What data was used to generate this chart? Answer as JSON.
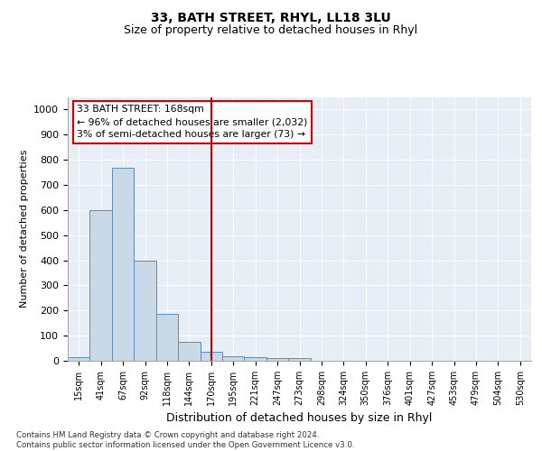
{
  "title1": "33, BATH STREET, RHYL, LL18 3LU",
  "title2": "Size of property relative to detached houses in Rhyl",
  "xlabel": "Distribution of detached houses by size in Rhyl",
  "ylabel": "Number of detached properties",
  "footer": "Contains HM Land Registry data © Crown copyright and database right 2024.\nContains public sector information licensed under the Open Government Licence v3.0.",
  "bin_labels": [
    "15sqm",
    "41sqm",
    "67sqm",
    "92sqm",
    "118sqm",
    "144sqm",
    "170sqm",
    "195sqm",
    "221sqm",
    "247sqm",
    "273sqm",
    "298sqm",
    "324sqm",
    "350sqm",
    "376sqm",
    "401sqm",
    "427sqm",
    "453sqm",
    "479sqm",
    "504sqm",
    "530sqm"
  ],
  "bar_values": [
    15,
    600,
    770,
    400,
    185,
    75,
    35,
    18,
    15,
    10,
    10,
    0,
    0,
    0,
    0,
    0,
    0,
    0,
    0,
    0,
    0
  ],
  "bar_color": "#c9d9e8",
  "bar_edge_color": "#5b8db8",
  "vline_x": 6,
  "vline_color": "#cc0000",
  "annotation_title": "33 BATH STREET: 168sqm",
  "annotation_line1": "← 96% of detached houses are smaller (2,032)",
  "annotation_line2": "3% of semi-detached houses are larger (73) →",
  "annotation_box_color": "#cc0000",
  "ylim": [
    0,
    1050
  ],
  "yticks": [
    0,
    100,
    200,
    300,
    400,
    500,
    600,
    700,
    800,
    900,
    1000
  ],
  "plot_bg_color": "#e8eef5",
  "title1_fontsize": 10,
  "title2_fontsize": 9
}
